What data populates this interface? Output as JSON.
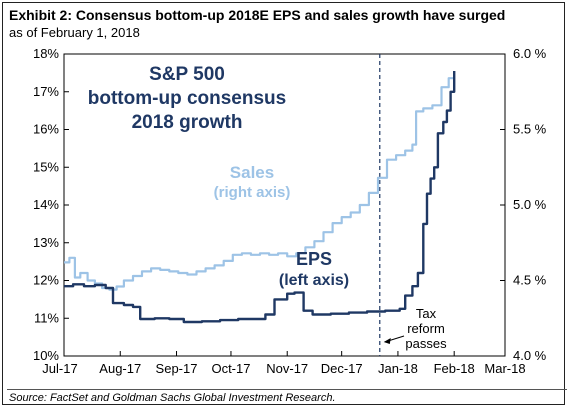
{
  "header": {
    "title": "Exhibit 2: Consensus bottom-up 2018E EPS and sales growth have surged",
    "subtitle": "as of February 1, 2018"
  },
  "source": "Source: FactSet and Goldman Sachs Global Investment Research.",
  "chart_data": {
    "type": "line",
    "title": "S&P 500 bottom-up consensus 2018 growth",
    "title_lines": [
      "S&P 500",
      "bottom-up consensus",
      "2018 growth"
    ],
    "x_ticks": [
      "Jul-17",
      "Aug-17",
      "Sep-17",
      "Oct-17",
      "Nov-17",
      "Dec-17",
      "Jan-18",
      "Feb-18",
      "Mar-18"
    ],
    "left_axis": {
      "ticks": [
        "10%",
        "11%",
        "12%",
        "13%",
        "14%",
        "15%",
        "16%",
        "17%",
        "18%"
      ],
      "ylim": [
        10,
        18
      ],
      "unit": "%"
    },
    "right_axis": {
      "ticks": [
        "4.0 %",
        "4.5 %",
        "5.0 %",
        "5.5 %",
        "6.0 %"
      ],
      "ylim": [
        4.0,
        6.0
      ],
      "unit": "%"
    },
    "colors": {
      "eps": "#1f3864",
      "sales": "#9dc3e6",
      "title": "#1f3864",
      "sales_label": "#9dc3e6"
    },
    "series": [
      {
        "name": "Sales",
        "label_lines": [
          "Sales",
          "(right axis)"
        ],
        "axis": "right",
        "points": [
          [
            "2017-07-01",
            4.62
          ],
          [
            "2017-07-04",
            4.65
          ],
          [
            "2017-07-07",
            4.52
          ],
          [
            "2017-07-10",
            4.55
          ],
          [
            "2017-07-14",
            4.5
          ],
          [
            "2017-07-18",
            4.48
          ],
          [
            "2017-07-22",
            4.45
          ],
          [
            "2017-07-26",
            4.44
          ],
          [
            "2017-07-30",
            4.46
          ],
          [
            "2017-08-03",
            4.5
          ],
          [
            "2017-08-08",
            4.53
          ],
          [
            "2017-08-13",
            4.56
          ],
          [
            "2017-08-18",
            4.58
          ],
          [
            "2017-08-23",
            4.57
          ],
          [
            "2017-08-28",
            4.56
          ],
          [
            "2017-09-02",
            4.55
          ],
          [
            "2017-09-07",
            4.54
          ],
          [
            "2017-09-12",
            4.56
          ],
          [
            "2017-09-17",
            4.58
          ],
          [
            "2017-09-22",
            4.6
          ],
          [
            "2017-09-27",
            4.63
          ],
          [
            "2017-10-02",
            4.67
          ],
          [
            "2017-10-07",
            4.68
          ],
          [
            "2017-10-12",
            4.67
          ],
          [
            "2017-10-17",
            4.68
          ],
          [
            "2017-10-22",
            4.67
          ],
          [
            "2017-10-27",
            4.68
          ],
          [
            "2017-11-01",
            4.66
          ],
          [
            "2017-11-06",
            4.68
          ],
          [
            "2017-11-11",
            4.72
          ],
          [
            "2017-11-16",
            4.76
          ],
          [
            "2017-11-21",
            4.82
          ],
          [
            "2017-11-26",
            4.88
          ],
          [
            "2017-12-01",
            4.92
          ],
          [
            "2017-12-06",
            4.95
          ],
          [
            "2017-12-11",
            5.0
          ],
          [
            "2017-12-16",
            5.08
          ],
          [
            "2017-12-21",
            5.18
          ],
          [
            "2017-12-26",
            5.3
          ],
          [
            "2017-12-31",
            5.33
          ],
          [
            "2018-01-05",
            5.36
          ],
          [
            "2018-01-09",
            5.4
          ],
          [
            "2018-01-11",
            5.62
          ],
          [
            "2018-01-15",
            5.64
          ],
          [
            "2018-01-20",
            5.66
          ],
          [
            "2018-01-25",
            5.78
          ],
          [
            "2018-01-29",
            5.84
          ],
          [
            "2018-02-01",
            5.84
          ]
        ]
      },
      {
        "name": "EPS",
        "label_lines": [
          "EPS",
          "(left axis)"
        ],
        "axis": "left",
        "points": [
          [
            "2017-07-01",
            11.85
          ],
          [
            "2017-07-06",
            11.9
          ],
          [
            "2017-07-12",
            11.85
          ],
          [
            "2017-07-18",
            11.88
          ],
          [
            "2017-07-24",
            11.8
          ],
          [
            "2017-07-28",
            11.4
          ],
          [
            "2017-08-03",
            11.35
          ],
          [
            "2017-08-08",
            11.3
          ],
          [
            "2017-08-12",
            10.98
          ],
          [
            "2017-08-20",
            11.0
          ],
          [
            "2017-08-28",
            10.98
          ],
          [
            "2017-09-05",
            10.9
          ],
          [
            "2017-09-15",
            10.92
          ],
          [
            "2017-09-25",
            10.95
          ],
          [
            "2017-10-05",
            10.98
          ],
          [
            "2017-10-15",
            10.98
          ],
          [
            "2017-10-20",
            11.1
          ],
          [
            "2017-10-25",
            11.5
          ],
          [
            "2017-11-01",
            11.65
          ],
          [
            "2017-11-05",
            11.68
          ],
          [
            "2017-11-10",
            11.2
          ],
          [
            "2017-11-15",
            11.1
          ],
          [
            "2017-11-25",
            11.12
          ],
          [
            "2017-12-05",
            11.15
          ],
          [
            "2017-12-15",
            11.18
          ],
          [
            "2017-12-25",
            11.2
          ],
          [
            "2018-01-02",
            11.25
          ],
          [
            "2018-01-05",
            11.6
          ],
          [
            "2018-01-09",
            11.85
          ],
          [
            "2018-01-12",
            12.2
          ],
          [
            "2018-01-15",
            13.5
          ],
          [
            "2018-01-17",
            14.3
          ],
          [
            "2018-01-19",
            14.7
          ],
          [
            "2018-01-21",
            15.0
          ],
          [
            "2018-01-23",
            15.9
          ],
          [
            "2018-01-26",
            16.2
          ],
          [
            "2018-01-28",
            16.5
          ],
          [
            "2018-01-30",
            17.0
          ],
          [
            "2018-02-01",
            17.55
          ]
        ]
      }
    ],
    "annotation": {
      "lines": [
        "Tax",
        "reform",
        "passes"
      ],
      "date": "2017-12-22"
    },
    "grid": false,
    "legend": "inline labels"
  }
}
